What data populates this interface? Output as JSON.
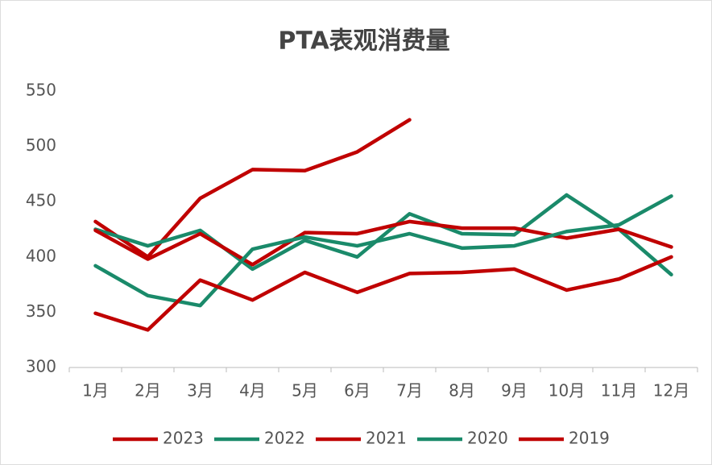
{
  "chart_data": {
    "type": "line",
    "title": "PTA表观消费量",
    "categories": [
      "1月",
      "2月",
      "3月",
      "4月",
      "5月",
      "6月",
      "7月",
      "8月",
      "9月",
      "10月",
      "11月",
      "12月"
    ],
    "series": [
      {
        "name": "2023",
        "color": "#c00000",
        "values": [
          432,
          400,
          453,
          479,
          478,
          495,
          524,
          null,
          null,
          null,
          null,
          null
        ]
      },
      {
        "name": "2022",
        "color": "#1a8a6a",
        "values": [
          425,
          410,
          424,
          389,
          415,
          400,
          439,
          421,
          420,
          456,
          425,
          384
        ]
      },
      {
        "name": "2021",
        "color": "#c00000",
        "values": [
          424,
          398,
          421,
          393,
          422,
          421,
          432,
          426,
          426,
          417,
          425,
          409
        ]
      },
      {
        "name": "2020",
        "color": "#1a8a6a",
        "values": [
          392,
          365,
          356,
          407,
          418,
          410,
          421,
          408,
          410,
          423,
          429,
          455
        ]
      },
      {
        "name": "2019",
        "color": "#c00000",
        "values": [
          349,
          334,
          379,
          361,
          386,
          368,
          385,
          386,
          389,
          370,
          380,
          400
        ]
      }
    ],
    "ylim": [
      300,
      550
    ],
    "yticks": [
      300,
      350,
      400,
      450,
      500,
      550
    ],
    "grid": false,
    "legend": "bottom"
  }
}
